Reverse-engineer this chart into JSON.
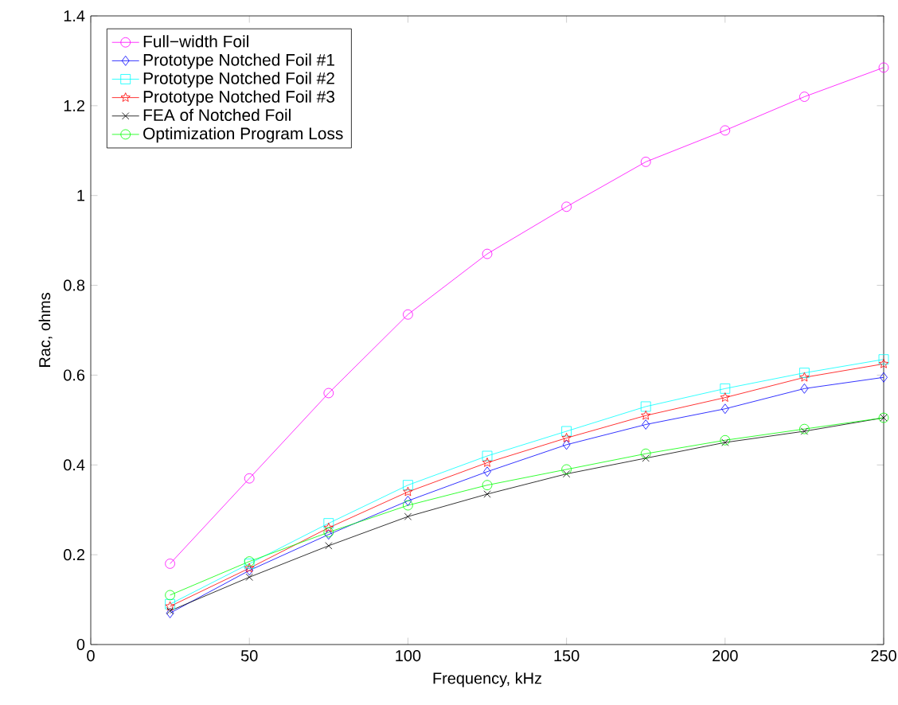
{
  "chart_data": {
    "type": "line",
    "xlabel": "Frequency, kHz",
    "ylabel": "Rac, ohms",
    "x": [
      25,
      50,
      75,
      100,
      125,
      150,
      175,
      200,
      225,
      250
    ],
    "series": [
      {
        "name": "Full−width Foil",
        "color": "#ff00ff",
        "marker": "circle",
        "values": [
          0.18,
          0.37,
          0.56,
          0.735,
          0.87,
          0.975,
          1.075,
          1.145,
          1.22,
          1.285
        ]
      },
      {
        "name": "Prototype Notched Foil #1",
        "color": "#0000ff",
        "marker": "diamond",
        "values": [
          0.07,
          0.165,
          0.245,
          0.32,
          0.385,
          0.445,
          0.49,
          0.525,
          0.57,
          0.595
        ]
      },
      {
        "name": "Prototype Notched Foil #2",
        "color": "#00ffff",
        "marker": "square",
        "values": [
          0.09,
          0.18,
          0.27,
          0.355,
          0.42,
          0.475,
          0.53,
          0.57,
          0.605,
          0.635
        ]
      },
      {
        "name": "Prototype Notched Foil #3",
        "color": "#ff0000",
        "marker": "star",
        "values": [
          0.085,
          0.17,
          0.26,
          0.34,
          0.405,
          0.46,
          0.51,
          0.55,
          0.595,
          0.625
        ]
      },
      {
        "name": "FEA of Notched Foil",
        "color": "#000000",
        "marker": "cross",
        "values": [
          0.075,
          0.15,
          0.22,
          0.285,
          0.335,
          0.38,
          0.415,
          0.45,
          0.475,
          0.505
        ]
      },
      {
        "name": "Optimization Program Loss",
        "color": "#00ff00",
        "marker": "circle",
        "values": [
          0.11,
          0.185,
          0.25,
          0.31,
          0.355,
          0.39,
          0.425,
          0.455,
          0.48,
          0.505
        ]
      }
    ],
    "xlim": [
      0,
      250
    ],
    "ylim": [
      0,
      1.4
    ],
    "xticks": [
      0,
      50,
      100,
      150,
      200,
      250
    ],
    "yticks": [
      0,
      0.2,
      0.4,
      0.6,
      0.8,
      1,
      1.2,
      1.4
    ],
    "legend": "top left",
    "grid": false,
    "line_style": "solid"
  }
}
